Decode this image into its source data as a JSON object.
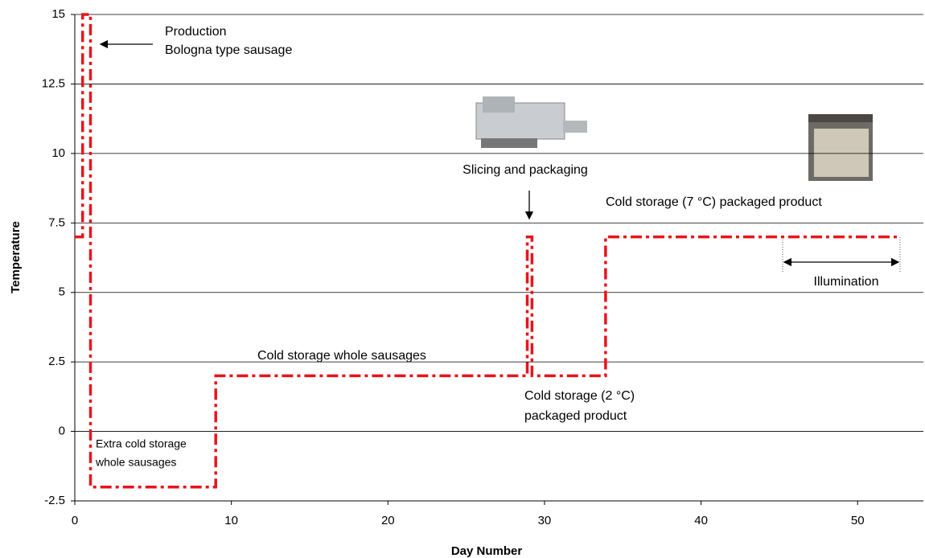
{
  "chart_data": {
    "type": "line",
    "x": [
      0,
      0.5,
      0.5,
      1,
      1,
      9,
      9,
      28.9,
      28.9,
      29.2,
      29.2,
      33.9,
      33.9,
      52.7
    ],
    "values": [
      7,
      7,
      15,
      15,
      -2,
      -2,
      2,
      2,
      7,
      7,
      2,
      2,
      7,
      7
    ],
    "color": "#e8141b",
    "xlabel": "Day Number",
    "ylabel": "Temperature",
    "xlim": [
      0,
      54.2
    ],
    "xticks": [
      0,
      10,
      20,
      30,
      40,
      50
    ],
    "ylim": [
      -2.5,
      15
    ],
    "yticks": [
      15,
      12.5,
      10,
      7.5,
      5,
      2.5,
      0,
      -2.5
    ],
    "grid": true,
    "annotations": [
      "Production",
      "Bologna type sausage",
      "Slicing and packaging",
      "Cold storage (7 °C) packaged product",
      "Illumination",
      "Cold storage whole sausages",
      "Cold storage (2 °C)",
      "packaged product",
      "Extra cold storage",
      "whole sausages"
    ]
  }
}
